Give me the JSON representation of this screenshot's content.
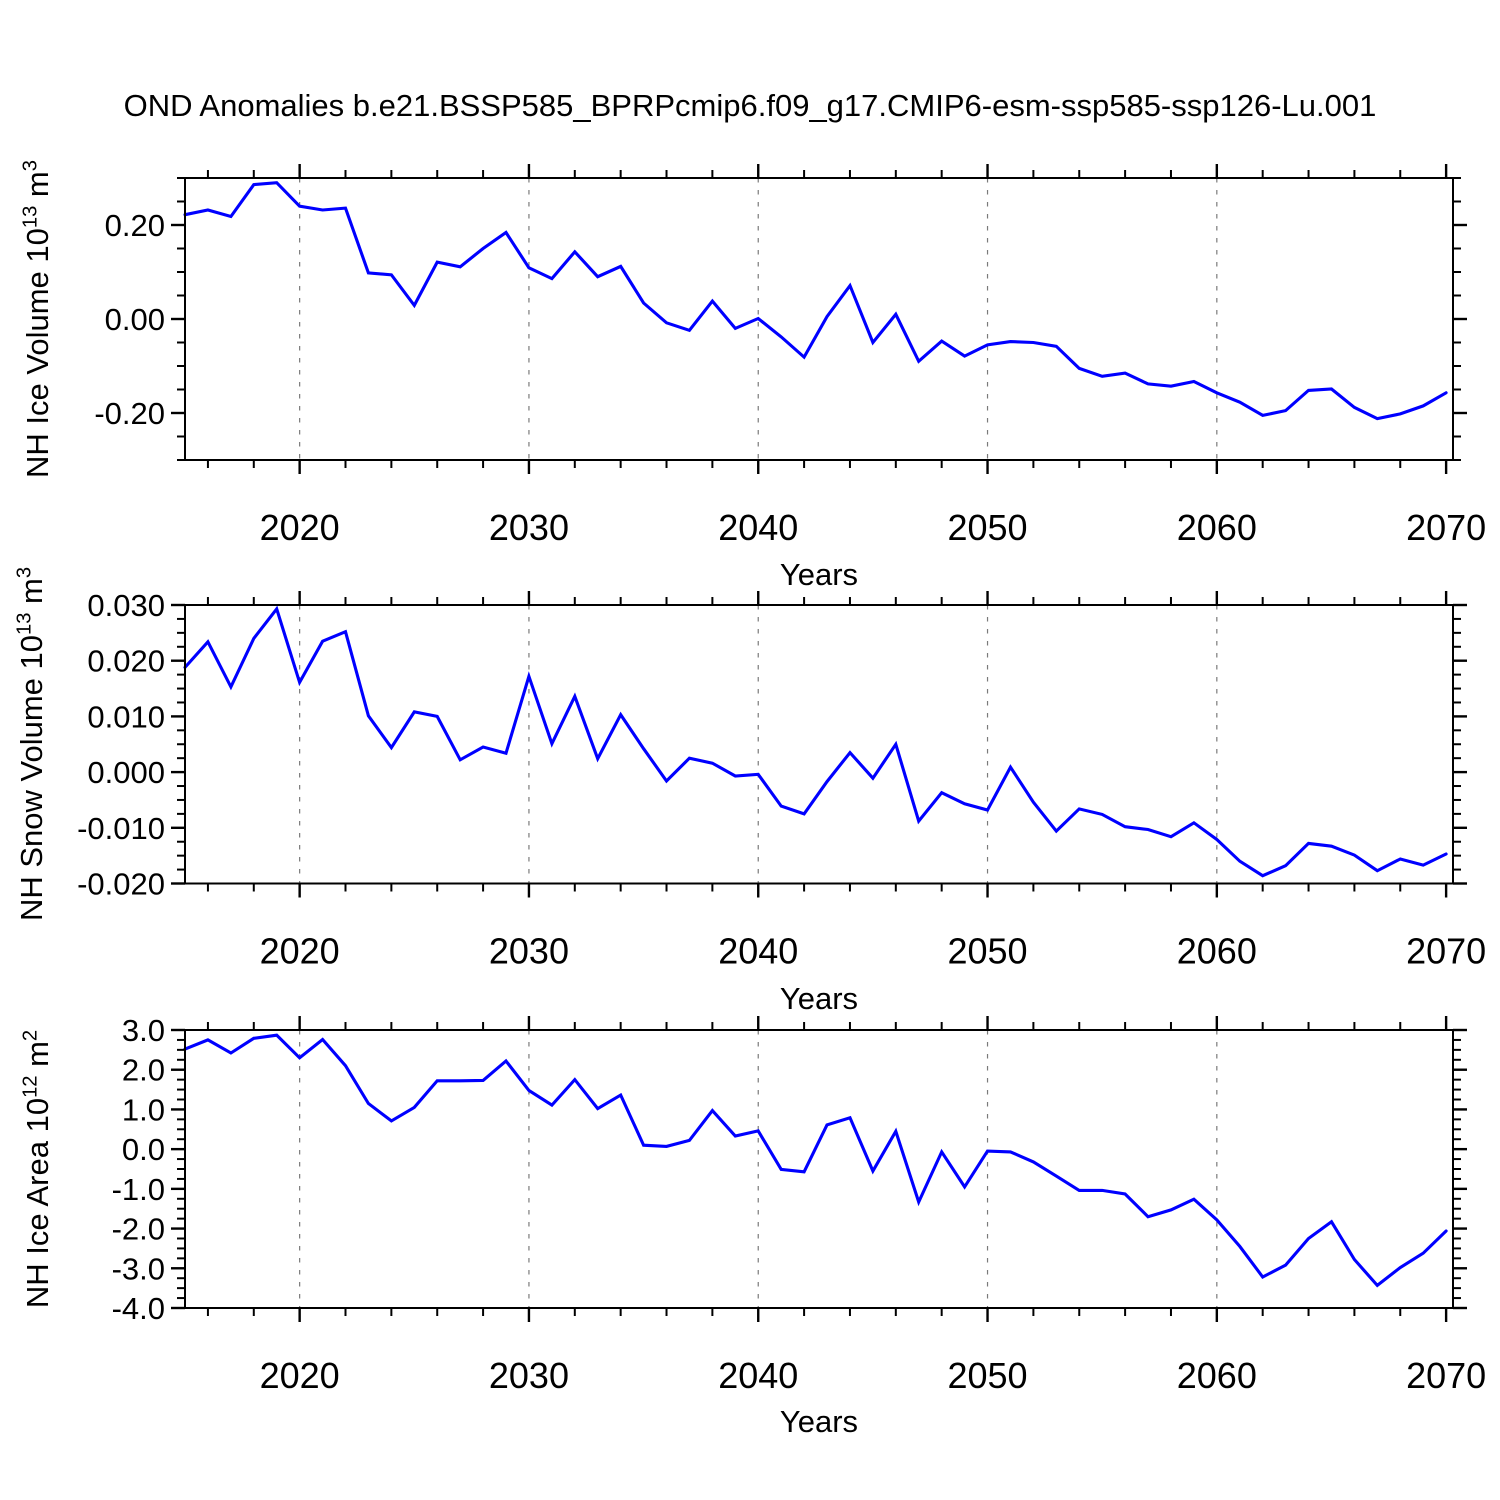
{
  "title": "OND Anomalies b.e21.BSSP585_BPRPcmip6.f09_g17.CMIP6-esm-ssp585-ssp126-Lu.001",
  "x_axis_label": "Years",
  "style": {
    "line_color": "#0000ff",
    "grid_color": "#7a7a7a",
    "axis_color": "#000000"
  },
  "x_axis": {
    "xlim": [
      2015,
      2070.3
    ],
    "xticks": [
      {
        "v": 2020,
        "label": "2020"
      },
      {
        "v": 2030,
        "label": "2030"
      },
      {
        "v": 2040,
        "label": "2040"
      },
      {
        "v": 2050,
        "label": "2050"
      },
      {
        "v": 2060,
        "label": "2060"
      },
      {
        "v": 2070,
        "label": "2070"
      }
    ],
    "xminor_start": 2016,
    "xminor_step": 2,
    "gridlines": [
      2020,
      2030,
      2040,
      2050,
      2060
    ],
    "years": [
      2015,
      2016,
      2017,
      2018,
      2019,
      2020,
      2021,
      2022,
      2023,
      2024,
      2025,
      2026,
      2027,
      2028,
      2029,
      2030,
      2031,
      2032,
      2033,
      2034,
      2035,
      2036,
      2037,
      2038,
      2039,
      2040,
      2041,
      2042,
      2043,
      2044,
      2045,
      2046,
      2047,
      2048,
      2049,
      2050,
      2051,
      2052,
      2053,
      2054,
      2055,
      2056,
      2057,
      2058,
      2059,
      2060,
      2061,
      2062,
      2063,
      2064,
      2065,
      2066,
      2067,
      2068,
      2069,
      2070
    ]
  },
  "chart_data": [
    {
      "id": "nh-ice-volume",
      "type": "line",
      "ylabel_text": "NH Ice Volume 10^13 m^3",
      "ylabel_parts": [
        {
          "text": "NH Ice Volume 10",
          "sup": false
        },
        {
          "text": "13",
          "sup": true
        },
        {
          "text": " m",
          "sup": false
        },
        {
          "text": "3",
          "sup": true
        }
      ],
      "ylim": [
        -0.3,
        0.3
      ],
      "yticks": [
        {
          "v": 0.2,
          "label": "0.20"
        },
        {
          "v": 0.0,
          "label": "0.00"
        },
        {
          "v": -0.2,
          "label": "-0.20"
        }
      ],
      "yminor_step": 0.05,
      "values": [
        0.222,
        0.232,
        0.218,
        0.286,
        0.29,
        0.24,
        0.232,
        0.236,
        0.098,
        0.094,
        0.029,
        0.121,
        0.111,
        0.15,
        0.184,
        0.109,
        0.086,
        0.143,
        0.09,
        0.112,
        0.034,
        -0.008,
        -0.024,
        0.038,
        -0.02,
        0.001,
        -0.038,
        -0.081,
        0.005,
        0.071,
        -0.05,
        0.01,
        -0.09,
        -0.047,
        -0.079,
        -0.055,
        -0.048,
        -0.05,
        -0.058,
        -0.105,
        -0.122,
        -0.115,
        -0.138,
        -0.143,
        -0.133,
        -0.157,
        -0.177,
        -0.205,
        -0.195,
        -0.152,
        -0.149,
        -0.188,
        -0.212,
        -0.202,
        -0.185,
        -0.157
      ]
    },
    {
      "id": "nh-snow-volume",
      "type": "line",
      "ylabel_text": "NH Snow Volume 10^13 m^3",
      "ylabel_parts": [
        {
          "text": "NH Snow Volume 10",
          "sup": false
        },
        {
          "text": "13",
          "sup": true
        },
        {
          "text": " m",
          "sup": false
        },
        {
          "text": "3",
          "sup": true
        }
      ],
      "ylim": [
        -0.02,
        0.03
      ],
      "yticks": [
        {
          "v": 0.03,
          "label": "0.030"
        },
        {
          "v": 0.02,
          "label": "0.020"
        },
        {
          "v": 0.01,
          "label": "0.010"
        },
        {
          "v": 0.0,
          "label": "0.000"
        },
        {
          "v": -0.01,
          "label": "-0.010"
        },
        {
          "v": -0.02,
          "label": "-0.020"
        }
      ],
      "yminor_step": 0.0025,
      "values": [
        0.0188,
        0.0234,
        0.0153,
        0.024,
        0.0293,
        0.0161,
        0.0235,
        0.0252,
        0.0101,
        0.0044,
        0.0108,
        0.01,
        0.0022,
        0.0045,
        0.0034,
        0.0172,
        0.0051,
        0.0136,
        0.0024,
        0.0103,
        0.0042,
        -0.0016,
        0.0025,
        0.0016,
        -0.0007,
        -0.0004,
        -0.0061,
        -0.0075,
        -0.0017,
        0.0035,
        -0.0011,
        0.005,
        -0.0088,
        -0.0037,
        -0.0057,
        -0.0068,
        0.0009,
        -0.0054,
        -0.0106,
        -0.0066,
        -0.0076,
        -0.0098,
        -0.0103,
        -0.0116,
        -0.0091,
        -0.0121,
        -0.016,
        -0.0186,
        -0.0168,
        -0.0128,
        -0.0133,
        -0.0149,
        -0.0177,
        -0.0156,
        -0.0167,
        -0.0147
      ]
    },
    {
      "id": "nh-ice-area",
      "type": "line",
      "ylabel_text": "NH Ice Area 10^12 m^2",
      "ylabel_parts": [
        {
          "text": "NH Ice Area 10",
          "sup": false
        },
        {
          "text": "12",
          "sup": true
        },
        {
          "text": " m",
          "sup": false
        },
        {
          "text": "2",
          "sup": true
        }
      ],
      "ylim": [
        -4.0,
        3.0
      ],
      "yticks": [
        {
          "v": 3.0,
          "label": "3.0"
        },
        {
          "v": 2.0,
          "label": "2.0"
        },
        {
          "v": 1.0,
          "label": "1.0"
        },
        {
          "v": 0.0,
          "label": "0.0"
        },
        {
          "v": -1.0,
          "label": "-1.0"
        },
        {
          "v": -2.0,
          "label": "-2.0"
        },
        {
          "v": -3.0,
          "label": "-3.0"
        },
        {
          "v": -4.0,
          "label": "-4.0"
        }
      ],
      "yminor_step": 0.25,
      "values": [
        2.52,
        2.75,
        2.42,
        2.79,
        2.87,
        2.3,
        2.76,
        2.1,
        1.15,
        0.71,
        1.05,
        1.72,
        1.72,
        1.73,
        2.22,
        1.48,
        1.11,
        1.75,
        1.02,
        1.36,
        0.1,
        0.07,
        0.22,
        0.97,
        0.33,
        0.46,
        -0.51,
        -0.57,
        0.61,
        0.79,
        -0.55,
        0.45,
        -1.33,
        -0.07,
        -0.95,
        -0.05,
        -0.07,
        -0.32,
        -0.68,
        -1.04,
        -1.04,
        -1.13,
        -1.7,
        -1.53,
        -1.26,
        -1.78,
        -2.45,
        -3.22,
        -2.92,
        -2.25,
        -1.83,
        -2.78,
        -3.43,
        -2.98,
        -2.62,
        -2.06
      ]
    }
  ]
}
